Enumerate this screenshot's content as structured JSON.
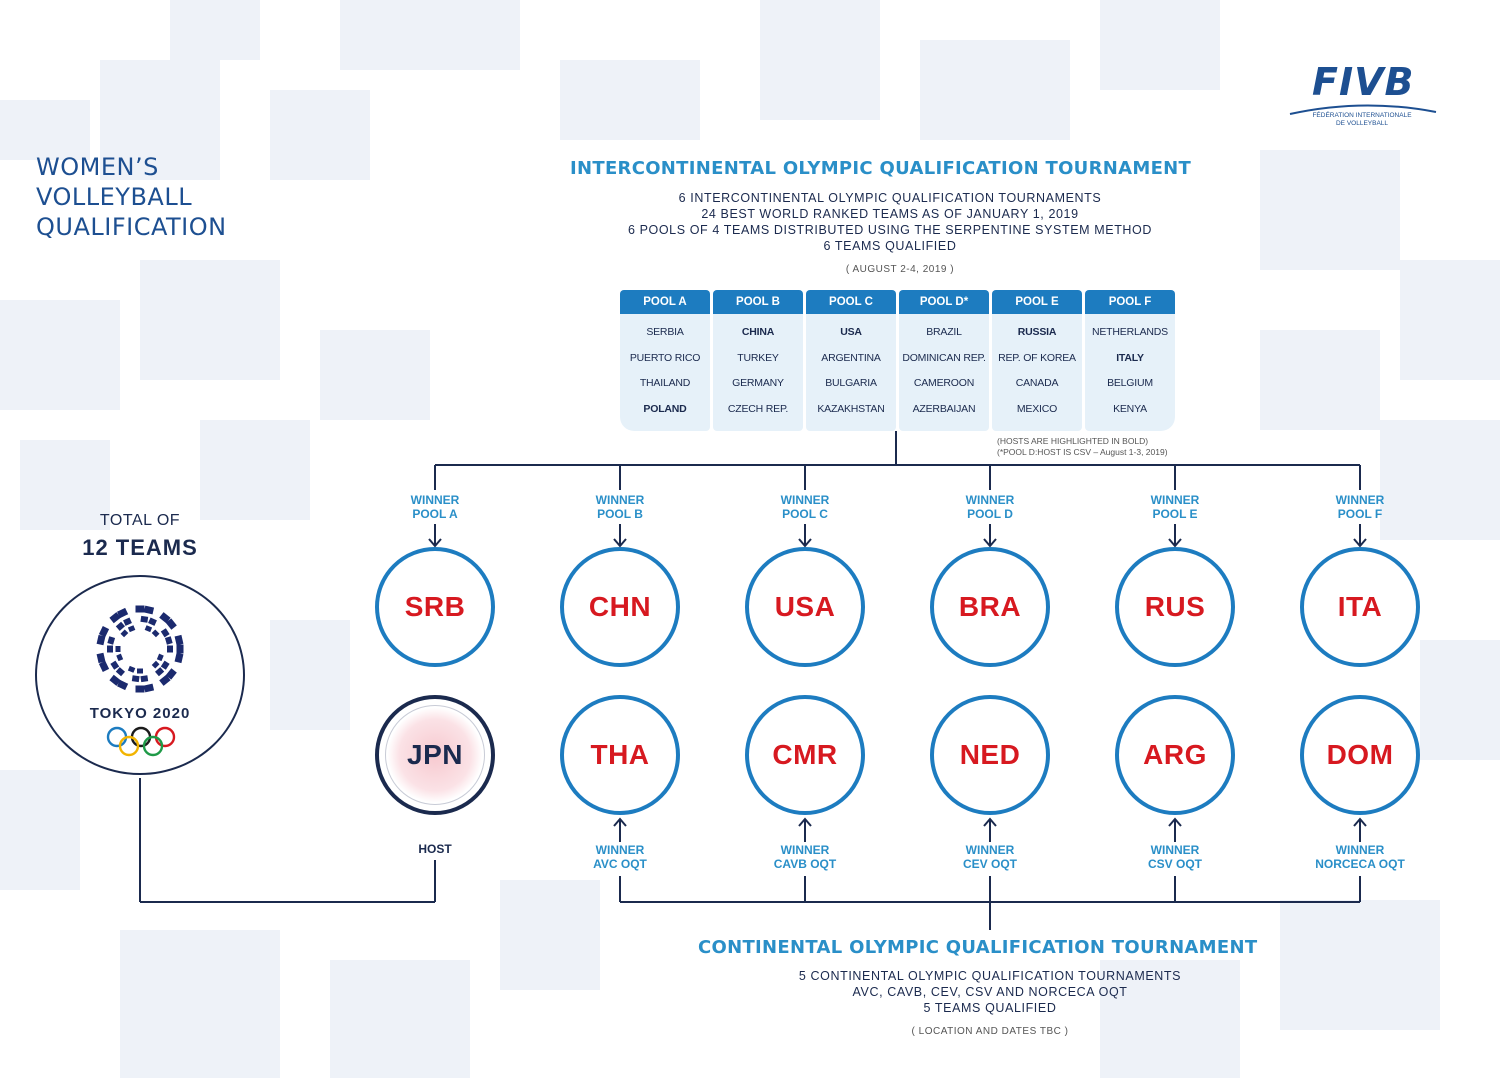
{
  "title_lines": [
    "WOMEN’S",
    "VOLLEYBALL",
    "QUALIFICATION"
  ],
  "fivb": {
    "logo": "FIVB",
    "subtitle": "FÉDÉRATION INTERNATIONALE DE VOLLEYBALL"
  },
  "intercontinental": {
    "title": "INTERCONTINENTAL OLYMPIC QUALIFICATION TOURNAMENT",
    "lines": [
      "6 INTERCONTINENTAL OLYMPIC QUALIFICATION TOURNAMENTS",
      "24 BEST WORLD RANKED TEAMS AS OF JANUARY 1, 2019",
      "6 POOLS OF 4 TEAMS DISTRIBUTED USING THE SERPENTINE SYSTEM METHOD",
      "6 TEAMS QUALIFIED"
    ],
    "dates": "( AUGUST 2-4, 2019 )"
  },
  "pools": [
    {
      "name": "POOL A",
      "teams": [
        "SERBIA",
        "PUERTO RICO",
        "THAILAND",
        "POLAND"
      ],
      "host_index": 3
    },
    {
      "name": "POOL B",
      "teams": [
        "CHINA",
        "TURKEY",
        "GERMANY",
        "CZECH REP."
      ],
      "host_index": 0
    },
    {
      "name": "POOL C",
      "teams": [
        "USA",
        "ARGENTINA",
        "BULGARIA",
        "KAZAKHSTAN"
      ],
      "host_index": 0
    },
    {
      "name": "POOL D*",
      "teams": [
        "BRAZIL",
        "DOMINICAN REP.",
        "CAMEROON",
        "AZERBAIJAN"
      ],
      "host_index": -1
    },
    {
      "name": "POOL E",
      "teams": [
        "RUSSIA",
        "REP. OF KOREA",
        "CANADA",
        "MEXICO"
      ],
      "host_index": 0
    },
    {
      "name": "POOL F",
      "teams": [
        "NETHERLANDS",
        "ITALY",
        "BELGIUM",
        "KENYA"
      ],
      "host_index": 1
    }
  ],
  "notes": {
    "hosts": "(HOSTS ARE HIGHLIGHTED IN BOLD)",
    "pool_d": "(*POOL D:HOST IS CSV – August 1-3, 2019)"
  },
  "total": {
    "label": "TOTAL OF",
    "count": "12 TEAMS"
  },
  "tokyo": {
    "text": "TOKYO 2020"
  },
  "top_row": [
    {
      "code": "SRB",
      "label": [
        "WINNER",
        "POOL A"
      ]
    },
    {
      "code": "CHN",
      "label": [
        "WINNER",
        "POOL B"
      ]
    },
    {
      "code": "USA",
      "label": [
        "WINNER",
        "POOL C"
      ]
    },
    {
      "code": "BRA",
      "label": [
        "WINNER",
        "POOL D"
      ]
    },
    {
      "code": "RUS",
      "label": [
        "WINNER",
        "POOL E"
      ]
    },
    {
      "code": "ITA",
      "label": [
        "WINNER",
        "POOL F"
      ]
    }
  ],
  "bottom_row": [
    {
      "code": "JPN",
      "label": [
        "HOST"
      ]
    },
    {
      "code": "THA",
      "label": [
        "WINNER",
        "AVC OQT"
      ]
    },
    {
      "code": "CMR",
      "label": [
        "WINNER",
        "CAVB OQT"
      ]
    },
    {
      "code": "NED",
      "label": [
        "WINNER",
        "CEV OQT"
      ]
    },
    {
      "code": "ARG",
      "label": [
        "WINNER",
        "CSV OQT"
      ]
    },
    {
      "code": "DOM",
      "label": [
        "WINNER",
        "NORCECA OQT"
      ]
    }
  ],
  "continental": {
    "title": "CONTINENTAL OLYMPIC QUALIFICATION TOURNAMENT",
    "lines": [
      "5 CONTINENTAL OLYMPIC QUALIFICATION TOURNAMENTS",
      "AVC, CAVB, CEV, CSV AND NORCECA OQT",
      "5 TEAMS QUALIFIED"
    ],
    "dates": "( LOCATION AND DATES TBC )"
  },
  "colors": {
    "accent_blue": "#2a8fc8",
    "pool_header": "#1d7cc0",
    "navy": "#1b2a4e",
    "team_code_red": "#d71920"
  }
}
